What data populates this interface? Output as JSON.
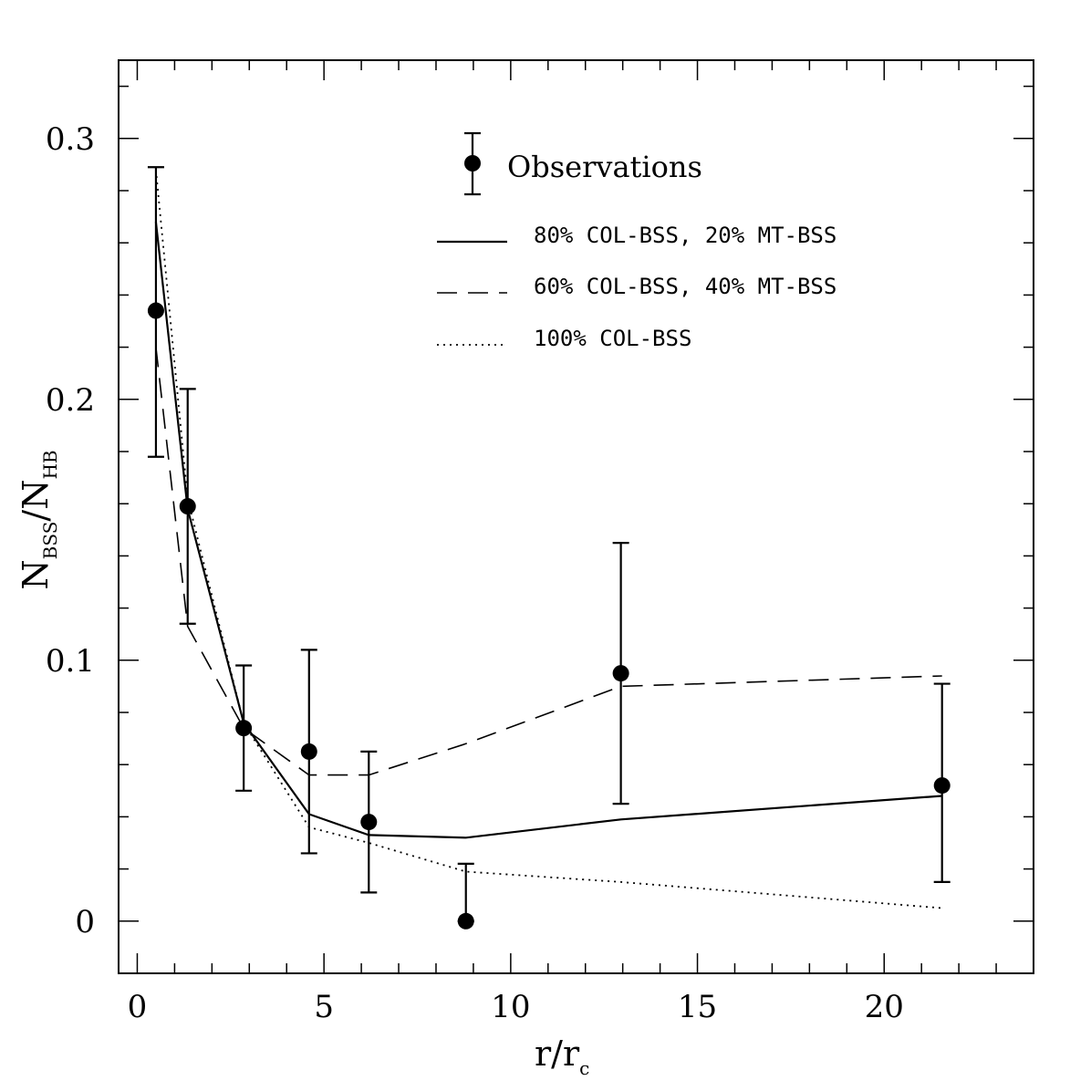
{
  "chart_data": {
    "type": "line",
    "xlabel": {
      "main": "r/r",
      "sub": "c"
    },
    "ylabel": {
      "main_1": "N",
      "sub_1": "BSS",
      "mid": "/N",
      "sub_2": "HB"
    },
    "xlim": [
      -0.5,
      24
    ],
    "ylim": [
      -0.02,
      0.33
    ],
    "xticks": [
      0,
      5,
      10,
      15,
      20
    ],
    "xtick_labels": [
      "0",
      "5",
      "10",
      "15",
      "20"
    ],
    "yticks": [
      0,
      0.1,
      0.2,
      0.3
    ],
    "ytick_labels": [
      "0",
      "0.1",
      "0.2",
      "0.3"
    ],
    "x_minor_step": 1,
    "y_minor_step": 0.02,
    "grid": false,
    "legend_position": "top-right",
    "observations": {
      "name": "Observations",
      "x": [
        0.5,
        1.35,
        2.85,
        4.6,
        6.2,
        8.8,
        12.95,
        21.55
      ],
      "y": [
        0.234,
        0.159,
        0.074,
        0.065,
        0.038,
        0.0,
        0.095,
        0.052
      ],
      "yerr_low": [
        0.178,
        0.114,
        0.05,
        0.026,
        0.011,
        0.0,
        0.045,
        0.015
      ],
      "yerr_high": [
        0.289,
        0.204,
        0.098,
        0.104,
        0.065,
        0.022,
        0.145,
        0.091
      ]
    },
    "series": [
      {
        "name": "80% COL-BSS, 20% MT-BSS",
        "style": "solid",
        "x": [
          0.5,
          1.35,
          2.85,
          4.6,
          6.2,
          8.8,
          12.95,
          21.55
        ],
        "y": [
          0.268,
          0.158,
          0.076,
          0.041,
          0.033,
          0.032,
          0.039,
          0.048
        ]
      },
      {
        "name": "60% COL-BSS, 40% MT-BSS",
        "style": "dashed",
        "x": [
          0.5,
          1.35,
          2.85,
          4.6,
          6.2,
          8.8,
          12.95,
          21.55
        ],
        "y": [
          0.22,
          0.113,
          0.074,
          0.056,
          0.056,
          0.068,
          0.09,
          0.094
        ]
      },
      {
        "name": "100% COL-BSS",
        "style": "dotted",
        "x": [
          0.5,
          1.35,
          2.85,
          4.6,
          6.2,
          8.8,
          12.95,
          21.55
        ],
        "y": [
          0.288,
          0.162,
          0.076,
          0.036,
          0.03,
          0.019,
          0.015,
          0.005
        ]
      }
    ]
  }
}
